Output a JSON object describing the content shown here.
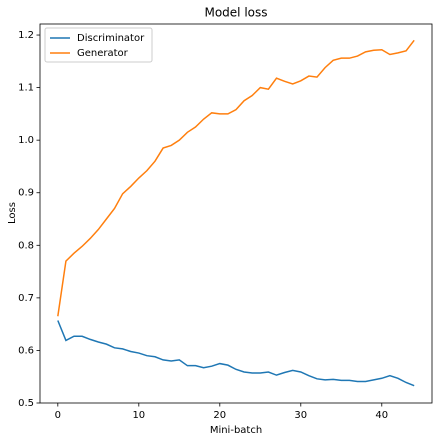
{
  "chart_data": {
    "type": "line",
    "title": "Model loss",
    "xlabel": "Mini-batch",
    "ylabel": "Loss",
    "x": [
      0,
      1,
      2,
      3,
      4,
      5,
      6,
      7,
      8,
      9,
      10,
      11,
      12,
      13,
      14,
      15,
      16,
      17,
      18,
      19,
      20,
      21,
      22,
      23,
      24,
      25,
      26,
      27,
      28,
      29,
      30,
      31,
      32,
      33,
      34,
      35,
      36,
      37,
      38,
      39,
      40,
      41,
      42,
      43,
      44
    ],
    "series": [
      {
        "name": "Discriminator",
        "color": "#1f77b4",
        "values": [
          0.657,
          0.619,
          0.627,
          0.627,
          0.621,
          0.616,
          0.612,
          0.605,
          0.603,
          0.598,
          0.595,
          0.59,
          0.588,
          0.582,
          0.58,
          0.582,
          0.571,
          0.571,
          0.567,
          0.57,
          0.575,
          0.572,
          0.564,
          0.559,
          0.557,
          0.557,
          0.559,
          0.553,
          0.558,
          0.562,
          0.559,
          0.552,
          0.546,
          0.544,
          0.545,
          0.543,
          0.543,
          0.541,
          0.541,
          0.544,
          0.547,
          0.552,
          0.547,
          0.539,
          0.533
        ]
      },
      {
        "name": "Generator",
        "color": "#ff7f0e",
        "values": [
          0.665,
          0.77,
          0.785,
          0.798,
          0.813,
          0.83,
          0.85,
          0.87,
          0.898,
          0.912,
          0.928,
          0.942,
          0.96,
          0.985,
          0.99,
          1.0,
          1.015,
          1.025,
          1.04,
          1.052,
          1.05,
          1.05,
          1.058,
          1.075,
          1.085,
          1.1,
          1.097,
          1.118,
          1.112,
          1.107,
          1.113,
          1.122,
          1.12,
          1.138,
          1.152,
          1.156,
          1.156,
          1.16,
          1.168,
          1.171,
          1.172,
          1.163,
          1.166,
          1.17,
          1.19
        ]
      }
    ],
    "xlim": [
      -2.2,
      46.2
    ],
    "xticks": [
      0,
      10,
      20,
      30,
      40
    ],
    "ylim": [
      0.5,
      1.221
    ],
    "yticks": [
      0.5,
      0.6,
      0.7,
      0.8,
      0.9,
      {
        "value": 1,
        "label": "1.0"
      },
      1.1,
      1.2
    ],
    "legend": "upper left",
    "grid": false
  }
}
